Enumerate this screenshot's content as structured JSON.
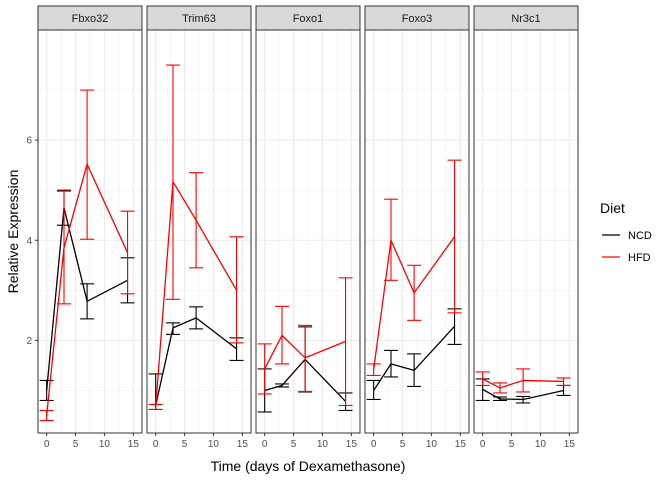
{
  "chart_data": {
    "type": "line",
    "xlabel": "Time (days of Dexamethasone)",
    "ylabel": "Relative Expression",
    "xlim": [
      -1.5,
      16.5
    ],
    "ylim": [
      0.15,
      8.2
    ],
    "xticks": [
      0,
      5,
      10,
      15
    ],
    "yticks": [
      2,
      4,
      6
    ],
    "grid": true,
    "legend": {
      "title": "Diet",
      "position": "right",
      "entries": [
        {
          "name": "NCD",
          "color": "#000000"
        },
        {
          "name": "HFD",
          "color": "#ff0000"
        }
      ]
    },
    "x": [
      0,
      3,
      7,
      14
    ],
    "panels": [
      {
        "title": "Fbxo32",
        "series": [
          {
            "name": "NCD",
            "mean": [
              1.0,
              4.65,
              2.78,
              3.2
            ],
            "lower": [
              0.8,
              4.3,
              2.43,
              2.75
            ],
            "upper": [
              1.2,
              5.0,
              3.13,
              3.65
            ]
          },
          {
            "name": "HFD",
            "mean": [
              0.5,
              3.85,
              5.52,
              3.75
            ],
            "lower": [
              0.4,
              2.73,
              4.02,
              2.93
            ],
            "upper": [
              0.6,
              4.98,
              7.0,
              4.58
            ]
          }
        ]
      },
      {
        "title": "Trim63",
        "series": [
          {
            "name": "NCD",
            "mean": [
              0.7,
              2.25,
              2.45,
              1.83
            ],
            "lower": [
              0.62,
              2.12,
              2.23,
              1.6
            ],
            "upper": [
              1.33,
              2.35,
              2.67,
              2.05
            ]
          },
          {
            "name": "HFD",
            "mean": [
              0.67,
              5.17,
              4.4,
              3.0
            ],
            "lower": [
              0.62,
              2.82,
              3.45,
              1.95
            ],
            "upper": [
              0.72,
              7.5,
              5.35,
              4.07
            ]
          }
        ]
      },
      {
        "title": "Foxo1",
        "series": [
          {
            "name": "NCD",
            "mean": [
              1.0,
              1.1,
              1.62,
              0.78
            ],
            "lower": [
              0.57,
              1.07,
              0.97,
              0.6
            ],
            "upper": [
              1.43,
              1.13,
              2.27,
              0.95
            ]
          },
          {
            "name": "HFD",
            "mean": [
              1.43,
              2.1,
              1.65,
              1.98
            ],
            "lower": [
              0.93,
              1.53,
              0.98,
              0.7
            ],
            "upper": [
              1.93,
              2.68,
              2.3,
              3.25
            ]
          }
        ]
      },
      {
        "title": "Foxo3",
        "series": [
          {
            "name": "NCD",
            "mean": [
              1.0,
              1.53,
              1.4,
              2.28
            ],
            "lower": [
              0.82,
              1.27,
              1.08,
              1.92
            ],
            "upper": [
              1.2,
              1.8,
              1.73,
              2.63
            ]
          },
          {
            "name": "HFD",
            "mean": [
              1.42,
              4.0,
              2.95,
              4.07
            ],
            "lower": [
              1.3,
              3.2,
              2.4,
              2.55
            ],
            "upper": [
              1.53,
              4.82,
              3.5,
              5.6
            ]
          }
        ]
      },
      {
        "title": "Nr3c1",
        "series": [
          {
            "name": "NCD",
            "mean": [
              1.02,
              0.83,
              0.82,
              1.0
            ],
            "lower": [
              0.8,
              0.8,
              0.75,
              0.9
            ],
            "upper": [
              1.23,
              0.87,
              0.88,
              1.1
            ]
          },
          {
            "name": "HFD",
            "mean": [
              1.23,
              1.05,
              1.2,
              1.18
            ],
            "lower": [
              1.1,
              0.95,
              0.97,
              1.1
            ],
            "upper": [
              1.37,
              1.15,
              1.43,
              1.25
            ]
          }
        ]
      }
    ]
  }
}
